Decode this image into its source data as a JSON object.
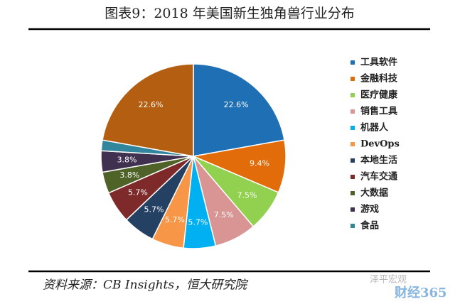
{
  "chart_data": {
    "type": "pie",
    "title": "图表9：2018 年美国新生独角兽行业分布",
    "categories": [
      "工具软件",
      "金融科技",
      "医疗健康",
      "销售工具",
      "机器人",
      "DevOps",
      "本地生活",
      "汽车交通",
      "大数据",
      "游戏",
      "食品",
      null
    ],
    "values": [
      22.6,
      9.4,
      7.5,
      7.5,
      5.7,
      5.7,
      5.7,
      5.7,
      3.8,
      3.8,
      1.9,
      22.6
    ],
    "value_labels": [
      "22.6%",
      "9.4%",
      "7.5%",
      "7.5%",
      "5.7%",
      "5.7%",
      "5.7%",
      "5.7%",
      "3.8%",
      "3.8%",
      null,
      "22.6%"
    ],
    "colors": [
      "#1f6fb4",
      "#e36c0a",
      "#92d050",
      "#d99594",
      "#00b0f0",
      "#f79646",
      "#244062",
      "#7f2a2a",
      "#4f6228",
      "#403151",
      "#31859c",
      "#b35e10"
    ],
    "legend": "right",
    "source": "资料来源：CB Insights，恒大研究院",
    "watermark": [
      "泽平宏观",
      "财经365"
    ]
  }
}
